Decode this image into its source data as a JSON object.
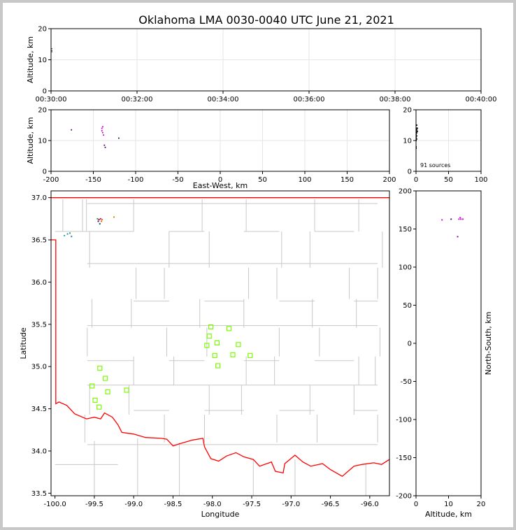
{
  "title": "Oklahoma LMA 0030-0040 UTC June 21, 2021",
  "chart_data": [
    {
      "name": "time-altitude",
      "type": "scatter",
      "ylabel": "Altitude, km",
      "xlabel": "",
      "xlim": [
        "00:30:00",
        "00:40:00"
      ],
      "ylim": [
        0,
        20
      ],
      "xticks": [
        "00:30:00",
        "00:32:00",
        "00:34:00",
        "00:36:00",
        "00:38:00",
        "00:40:00"
      ],
      "yticks": [
        0,
        10,
        20
      ],
      "grid": true,
      "points": [
        {
          "x": "00:30:00",
          "y": 13.0
        },
        {
          "x": "00:30:00",
          "y": 13.6
        },
        {
          "x": "00:30:00",
          "y": 12.6
        }
      ]
    },
    {
      "name": "east-west-altitude",
      "type": "scatter",
      "xlabel": "East-West, km",
      "ylabel": "Altitude, km",
      "xlim": [
        -200,
        200
      ],
      "ylim": [
        0,
        20
      ],
      "xticks": [
        -200,
        -150,
        -100,
        -50,
        0,
        50,
        100,
        150,
        200
      ],
      "yticks": [
        0,
        10,
        20
      ],
      "grid": true,
      "points": [
        {
          "x": -176,
          "y": 13.5,
          "c": "#6a0080"
        },
        {
          "x": -140,
          "y": 14.0,
          "c": "#cc00cc"
        },
        {
          "x": -140,
          "y": 13.2,
          "c": "#cc00cc"
        },
        {
          "x": -139,
          "y": 12.6,
          "c": "#cc00cc"
        },
        {
          "x": -138,
          "y": 11.8,
          "c": "#cc00cc"
        },
        {
          "x": -139,
          "y": 14.5,
          "c": "#cc00cc"
        },
        {
          "x": -137,
          "y": 8.5,
          "c": "#4a006a"
        },
        {
          "x": -136,
          "y": 7.8,
          "c": "#4a006a"
        },
        {
          "x": -120,
          "y": 10.8,
          "c": "#4a006a"
        }
      ]
    },
    {
      "name": "altitude-histogram",
      "type": "bar",
      "xlim": [
        0,
        100
      ],
      "ylim": [
        0,
        20
      ],
      "xticks": [
        0,
        50,
        100
      ],
      "yticks": [
        0,
        10,
        20
      ],
      "grid": true,
      "annotation": "91 sources",
      "points": [
        {
          "x": 2,
          "y": 15
        },
        {
          "x": 3,
          "y": 14
        },
        {
          "x": 2,
          "y": 13.5
        },
        {
          "x": 3,
          "y": 13
        },
        {
          "x": 2,
          "y": 12.5
        },
        {
          "x": 1,
          "y": 12
        },
        {
          "x": 2,
          "y": 11.5
        },
        {
          "x": 1,
          "y": 11
        },
        {
          "x": 2,
          "y": 10.5
        },
        {
          "x": 1,
          "y": 10
        },
        {
          "x": 1,
          "y": 8
        },
        {
          "x": 1,
          "y": 7.5
        }
      ]
    },
    {
      "name": "plan-view-map",
      "type": "scatter",
      "xlabel": "Longitude",
      "ylabel": "Latitude",
      "xlim": [
        -100.05,
        -95.75
      ],
      "ylim": [
        33.47,
        37.08
      ],
      "xticks": [
        -100.0,
        -99.5,
        -99.0,
        -98.5,
        -98.0,
        -97.5,
        -97.0,
        -96.5,
        -96.0
      ],
      "yticks": [
        33.5,
        34.0,
        34.5,
        35.0,
        35.5,
        36.0,
        36.5,
        37.0
      ],
      "stations": [
        {
          "lon": -98.02,
          "lat": 35.47
        },
        {
          "lon": -97.79,
          "lat": 35.45
        },
        {
          "lon": -98.04,
          "lat": 35.36
        },
        {
          "lon": -97.94,
          "lat": 35.28
        },
        {
          "lon": -97.67,
          "lat": 35.26
        },
        {
          "lon": -98.07,
          "lat": 35.25
        },
        {
          "lon": -97.97,
          "lat": 35.13
        },
        {
          "lon": -97.74,
          "lat": 35.14
        },
        {
          "lon": -97.52,
          "lat": 35.13
        },
        {
          "lon": -97.93,
          "lat": 35.01
        },
        {
          "lon": -99.43,
          "lat": 34.98
        },
        {
          "lon": -99.36,
          "lat": 34.86
        },
        {
          "lon": -99.53,
          "lat": 34.77
        },
        {
          "lon": -99.09,
          "lat": 34.72
        },
        {
          "lon": -99.33,
          "lat": 34.7
        },
        {
          "lon": -99.49,
          "lat": 34.6
        },
        {
          "lon": -99.44,
          "lat": 34.52
        }
      ],
      "sources": [
        {
          "lon": -99.44,
          "lat": 36.74,
          "c": "#cc0000"
        },
        {
          "lon": -99.42,
          "lat": 36.75,
          "c": "#cc00cc"
        },
        {
          "lon": -99.45,
          "lat": 36.72,
          "c": "#6a0080"
        },
        {
          "lon": -99.4,
          "lat": 36.74,
          "c": "#e08000"
        },
        {
          "lon": -99.43,
          "lat": 36.69,
          "c": "#006070"
        },
        {
          "lon": -99.46,
          "lat": 36.75,
          "c": "#20a020"
        },
        {
          "lon": -99.41,
          "lat": 36.72,
          "c": "#ff6000"
        },
        {
          "lon": -99.25,
          "lat": 36.77,
          "c": "#e08000"
        },
        {
          "lon": -99.84,
          "lat": 36.57,
          "c": "#2090b0"
        },
        {
          "lon": -99.81,
          "lat": 36.58,
          "c": "#30a060"
        },
        {
          "lon": -99.88,
          "lat": 36.55,
          "c": "#20b0b0"
        },
        {
          "lon": -99.79,
          "lat": 36.54,
          "c": "#3070c0"
        }
      ]
    },
    {
      "name": "altitude-north-south",
      "type": "scatter",
      "xlabel": "Altitude, km",
      "ylabel": "North-South, km",
      "xlim": [
        0,
        20
      ],
      "ylim": [
        -200,
        200
      ],
      "xticks": [
        0,
        10,
        20
      ],
      "yticks": [
        -200,
        -150,
        -100,
        -50,
        0,
        50,
        100,
        150,
        200
      ],
      "points": [
        {
          "x": 8.0,
          "y": 162,
          "c": "#cc00cc"
        },
        {
          "x": 10.8,
          "y": 163,
          "c": "#4a006a"
        },
        {
          "x": 13.2,
          "y": 163,
          "c": "#cc00cc"
        },
        {
          "x": 13.8,
          "y": 163,
          "c": "#cc00cc"
        },
        {
          "x": 14.4,
          "y": 163,
          "c": "#cc00cc"
        },
        {
          "x": 13.6,
          "y": 165,
          "c": "#cc00cc"
        },
        {
          "x": 12.8,
          "y": 140,
          "c": "#6a0080"
        }
      ]
    }
  ]
}
